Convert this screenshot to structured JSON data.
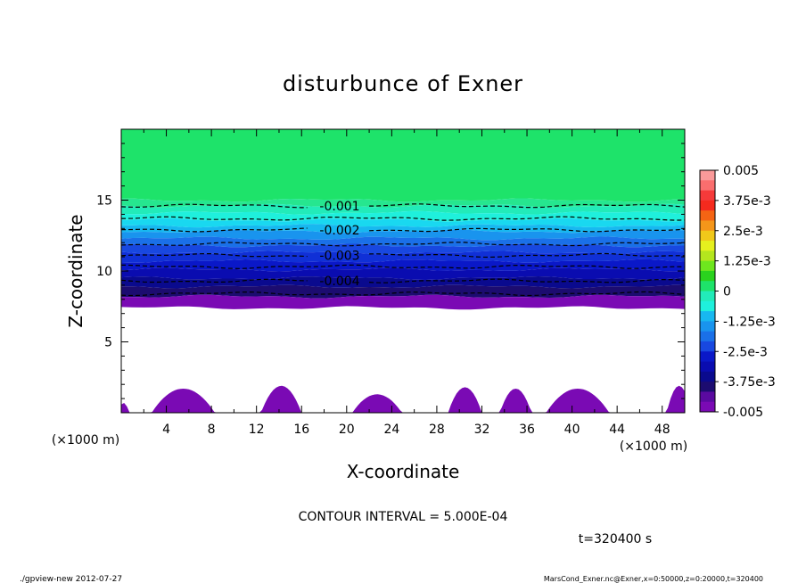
{
  "chart_data": {
    "type": "contour",
    "title": "disturbunce of Exner",
    "xlabel": "X-coordinate",
    "ylabel": "Z-coordinate",
    "x_unit": "(×1000 m)",
    "y_unit": "(×1000 m)",
    "xlim": [
      0,
      50
    ],
    "ylim": [
      0,
      20
    ],
    "x_ticks": [
      4,
      8,
      12,
      16,
      20,
      24,
      28,
      32,
      36,
      40,
      44,
      48
    ],
    "y_ticks": [
      5,
      10,
      15
    ],
    "contour_lines": [
      {
        "value": -0.001,
        "z": 14.6,
        "label": "-0.001"
      },
      {
        "value": -0.0015,
        "z": 13.7,
        "label": ""
      },
      {
        "value": -0.002,
        "z": 12.9,
        "label": "-0.002"
      },
      {
        "value": -0.0025,
        "z": 11.9,
        "label": ""
      },
      {
        "value": -0.003,
        "z": 11.1,
        "label": "-0.003"
      },
      {
        "value": -0.0035,
        "z": 10.3,
        "label": ""
      },
      {
        "value": -0.004,
        "z": 9.3,
        "label": "-0.004"
      },
      {
        "value": -0.0045,
        "z": 8.4,
        "label": ""
      }
    ],
    "fill_bands": [
      {
        "z0": 15.0,
        "z1": 20.0,
        "color": "#1ee36a"
      },
      {
        "z0": 14.6,
        "z1": 15.0,
        "color": "#26e68f"
      },
      {
        "z0": 14.1,
        "z1": 14.6,
        "color": "#22ebb9"
      },
      {
        "z0": 13.6,
        "z1": 14.1,
        "color": "#1ff0dc"
      },
      {
        "z0": 13.2,
        "z1": 13.6,
        "color": "#19d8f0"
      },
      {
        "z0": 12.8,
        "z1": 13.2,
        "color": "#18b8f0"
      },
      {
        "z0": 12.3,
        "z1": 12.8,
        "color": "#1994ee"
      },
      {
        "z0": 11.8,
        "z1": 12.3,
        "color": "#1a70e8"
      },
      {
        "z0": 11.3,
        "z1": 11.8,
        "color": "#1848e0"
      },
      {
        "z0": 10.7,
        "z1": 11.3,
        "color": "#1030d6"
      },
      {
        "z0": 10.1,
        "z1": 10.7,
        "color": "#0a18c8"
      },
      {
        "z0": 9.5,
        "z1": 10.1,
        "color": "#0a0cb0"
      },
      {
        "z0": 8.9,
        "z1": 9.5,
        "color": "#0a0a8e"
      },
      {
        "z0": 8.2,
        "z1": 8.9,
        "color": "#1c0c70"
      },
      {
        "z0": 7.4,
        "z1": 8.2,
        "color": "#7a0ab4"
      }
    ],
    "terrain_color": "#7a0ab4",
    "terrain_peaks": [
      {
        "x": 0.2,
        "h": 0.7,
        "w": 0.5
      },
      {
        "x": 5.5,
        "h": 1.7,
        "w": 2.8
      },
      {
        "x": 14.2,
        "h": 1.9,
        "w": 1.8
      },
      {
        "x": 22.7,
        "h": 1.3,
        "w": 2.2
      },
      {
        "x": 30.5,
        "h": 1.8,
        "w": 1.5
      },
      {
        "x": 35.0,
        "h": 1.7,
        "w": 1.4
      },
      {
        "x": 40.5,
        "h": 1.7,
        "w": 2.8
      },
      {
        "x": 49.5,
        "h": 1.9,
        "w": 1.1
      }
    ],
    "colorbar": {
      "labels": [
        "0.005",
        "3.75e-3",
        "2.5e-3",
        "1.25e-3",
        "0",
        "-1.25e-3",
        "-2.5e-3",
        "-3.75e-3",
        "-0.005"
      ],
      "colors": [
        "#fa9a9a",
        "#fa6e6e",
        "#f53a3a",
        "#f52a1e",
        "#f56414",
        "#f5961a",
        "#f0c81a",
        "#e6f01e",
        "#b4e61e",
        "#6ee61e",
        "#2ad21e",
        "#1ee36a",
        "#22ebb9",
        "#1ff0dc",
        "#18b8f0",
        "#1994ee",
        "#1a70e8",
        "#1848e0",
        "#0a18c8",
        "#0a0cb0",
        "#0a0a8e",
        "#1c0c70",
        "#5a0aa0",
        "#7a0ab4"
      ]
    },
    "contour_interval_text": "CONTOUR INTERVAL = 5.000E-04",
    "time_text": "t=320400 s"
  },
  "footer": {
    "left": "./gpview-new   2012-07-27",
    "right": "MarsCond_Exner.nc@Exner,x=0:50000,z=0:20000,t=320400"
  }
}
